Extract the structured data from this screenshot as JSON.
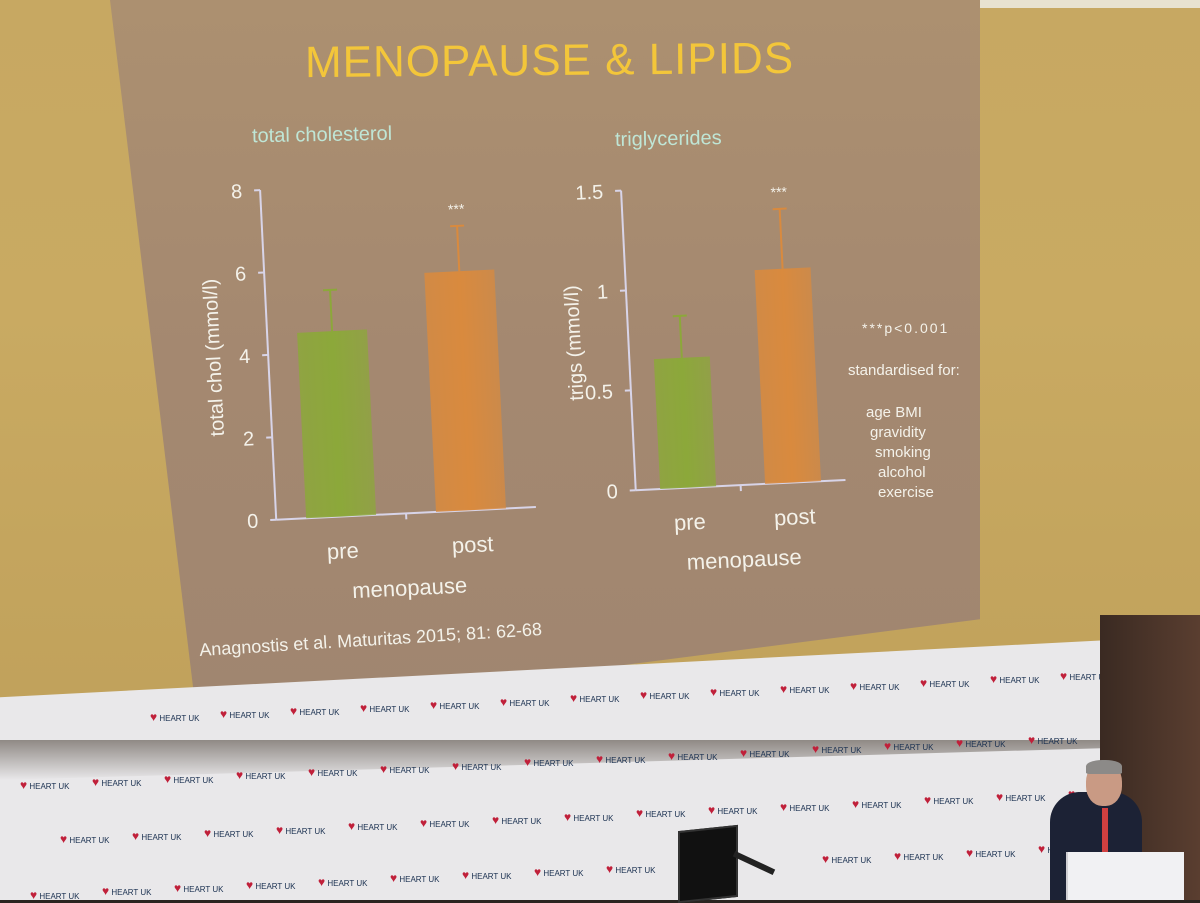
{
  "slide": {
    "title": "MENOPAUSE & LIPIDS",
    "citation": "Anagnostis et al. Maturitas 2015; 81: 62-68"
  },
  "notes": {
    "significance": "***p<0.001",
    "standardised": "standardised for:",
    "factors": [
      "age  BMI",
      "gravidity",
      "smoking",
      "alcohol",
      "exercise"
    ]
  },
  "colors": {
    "pre_bar": "#8ca83a",
    "post_bar": "#d98a3e",
    "title": "#f3c63a",
    "chart_title": "#bfe6d6",
    "axis": "#d8d4e8"
  },
  "chart_data": [
    {
      "type": "bar",
      "title": "total cholesterol",
      "xlabel": "menopause",
      "ylabel": "total chol (mmol/l)",
      "categories": [
        "pre",
        "post"
      ],
      "values": [
        4.5,
        5.8
      ],
      "error_upper": [
        5.5,
        6.9
      ],
      "annotations": [
        "",
        "***"
      ],
      "ylim": [
        0,
        8
      ],
      "yticks": [
        "0",
        "2",
        "4",
        "6",
        "8"
      ]
    },
    {
      "type": "bar",
      "title": "triglycerides",
      "xlabel": "menopause",
      "ylabel": "trigs (mmol/l)",
      "categories": [
        "pre",
        "post"
      ],
      "values": [
        0.65,
        1.07
      ],
      "error_upper": [
        0.86,
        1.37
      ],
      "annotations": [
        "",
        "***"
      ],
      "ylim": [
        0,
        1.5
      ],
      "yticks": [
        "0",
        "0.5",
        "1",
        "1.5"
      ]
    }
  ],
  "backdrop": {
    "logo_text": "HEART UK"
  }
}
